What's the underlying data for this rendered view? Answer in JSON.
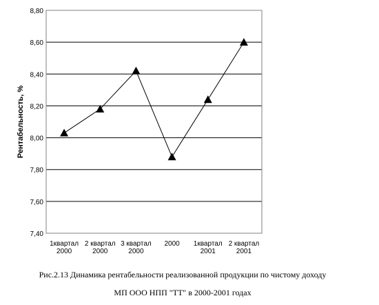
{
  "chart_data": {
    "type": "line",
    "categories": [
      [
        "1квартал",
        "2000"
      ],
      [
        "2 квартал",
        "2000"
      ],
      [
        "3 квартал",
        "2000"
      ],
      [
        "2000",
        ""
      ],
      [
        "1квартал",
        "2001"
      ],
      [
        "2 квартал",
        "2001"
      ]
    ],
    "values": [
      8.03,
      8.18,
      8.42,
      7.88,
      8.24,
      8.6
    ],
    "ylabel": "Рентабельность, %",
    "ylim": [
      7.4,
      8.8
    ],
    "yticks": [
      "7,40",
      "7,60",
      "7,80",
      "8,00",
      "8,20",
      "8,40",
      "8,60",
      "8,80"
    ],
    "grid": true,
    "marker": "triangle",
    "colors": {
      "line": "#000000",
      "grid": "#000000",
      "marker": "#000000"
    }
  },
  "caption": {
    "line1": "Рис.2.13  Динамика рентабельности реализованной продукции по чистому доходу",
    "line2": "МП ООО НПП \"ТТ\" в 2000-2001 годах"
  }
}
